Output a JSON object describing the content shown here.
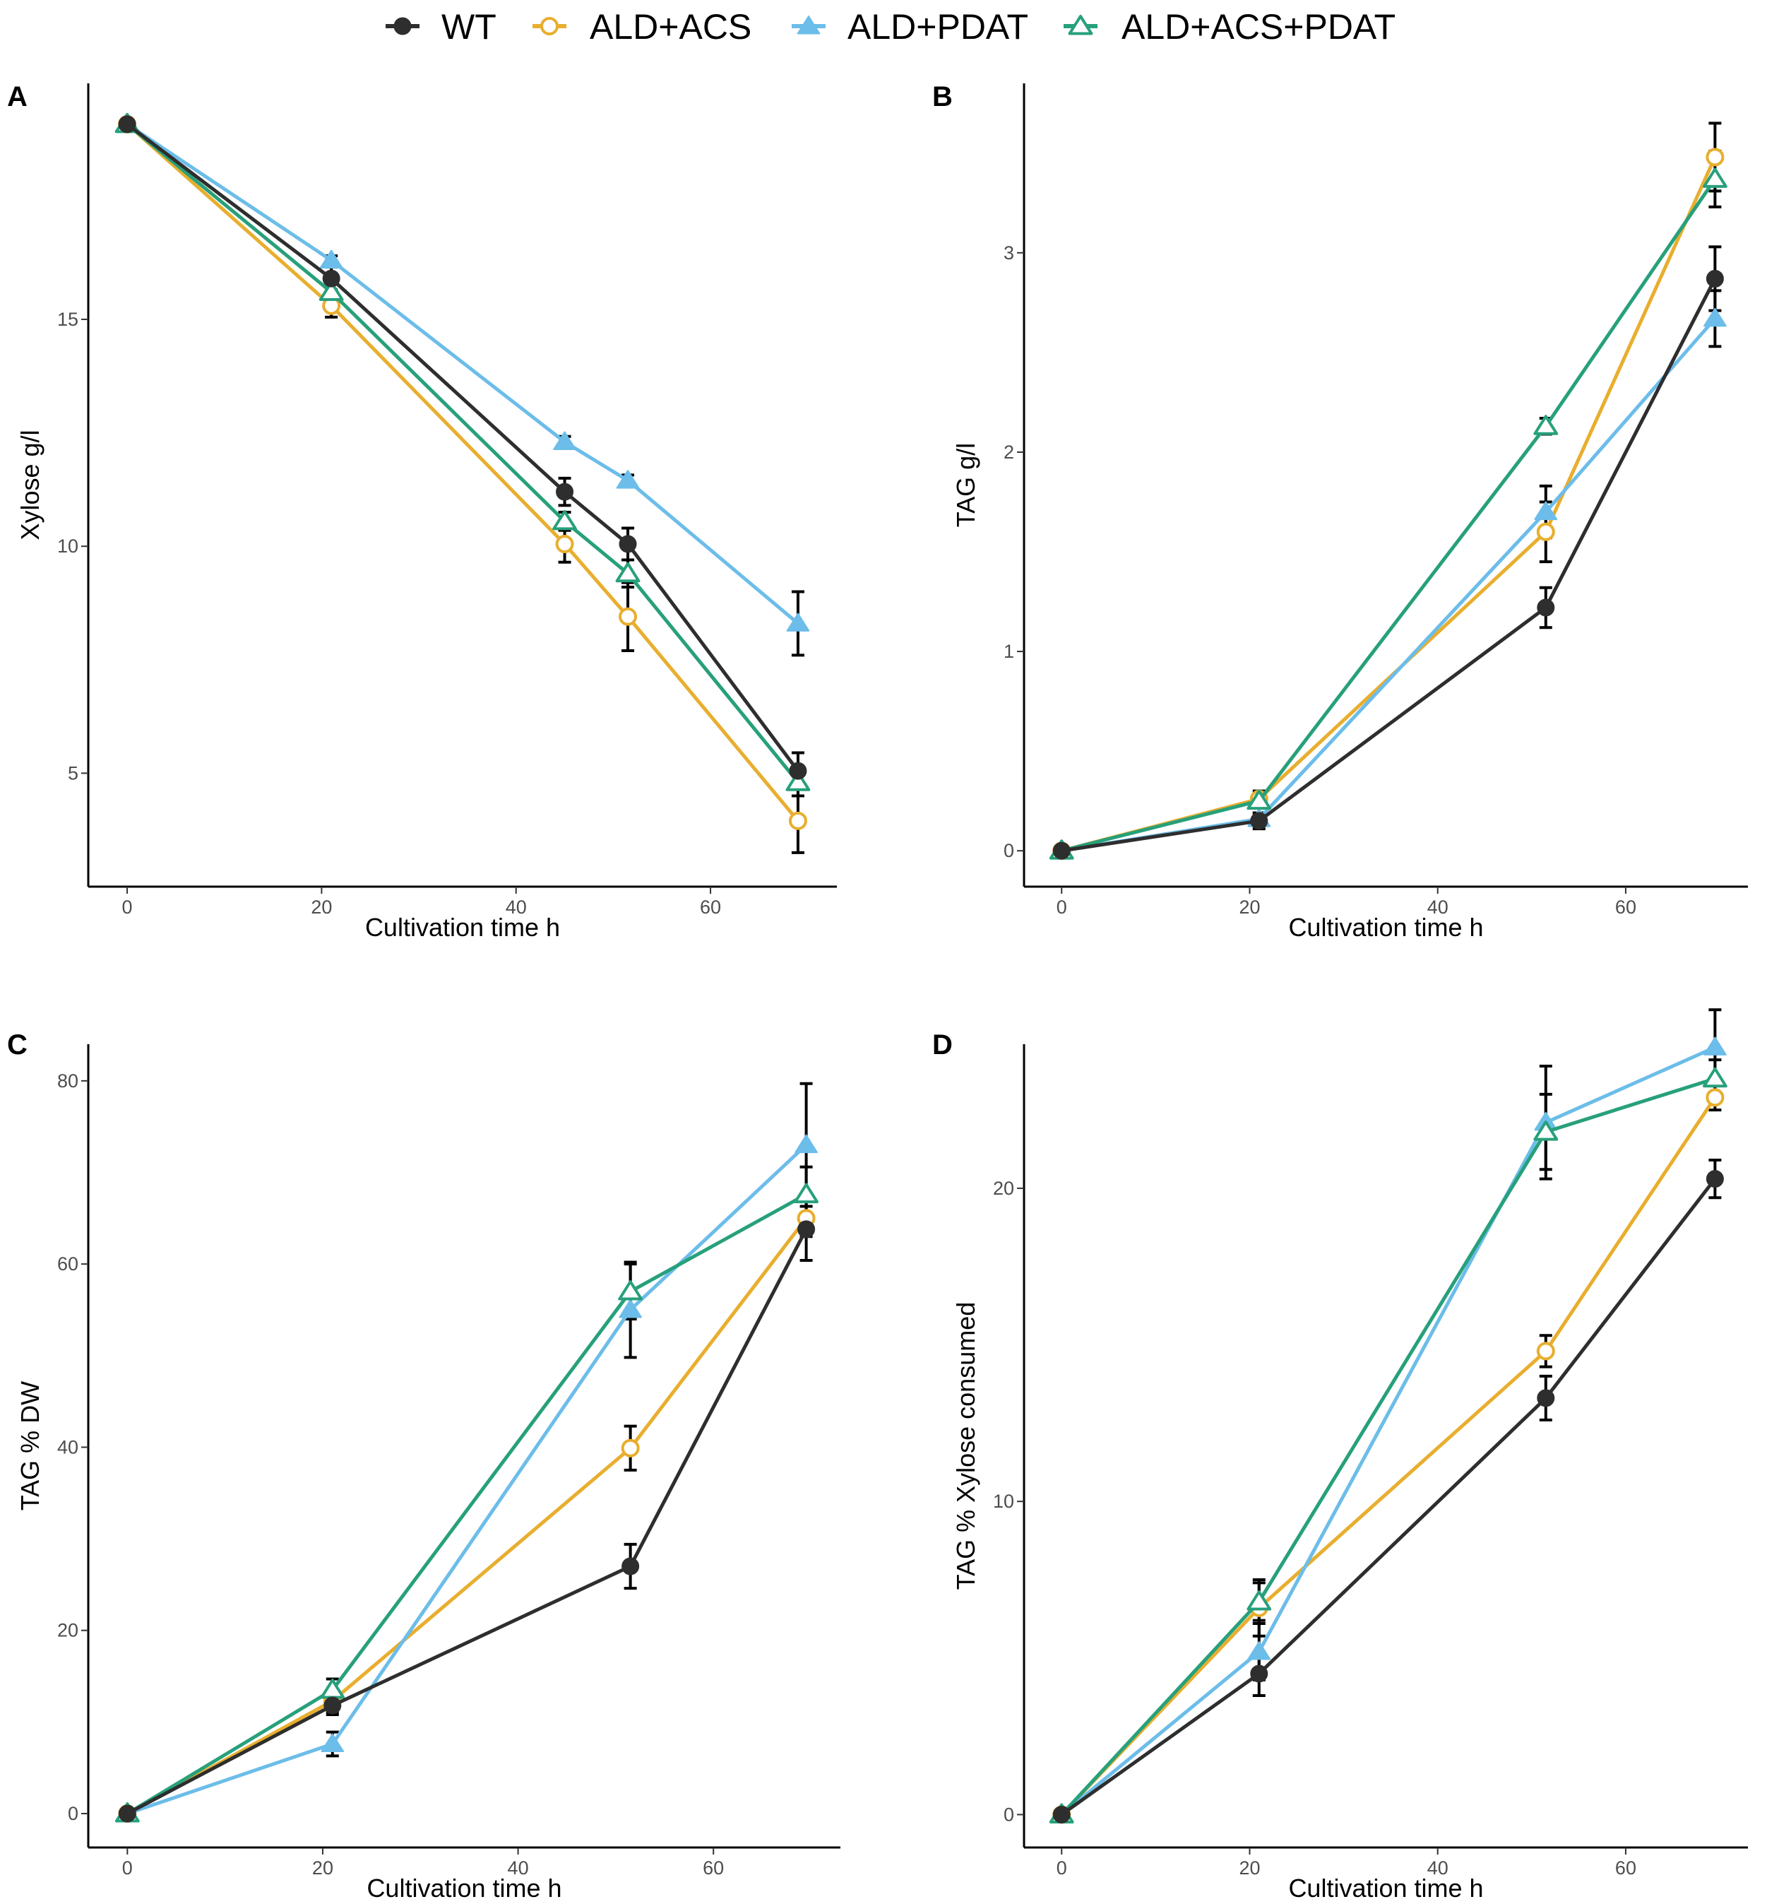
{
  "colors": {
    "WT": "#2e2e2e",
    "ALD+ACS": "#e8ae2e",
    "ALD+PDAT": "#6cbde9",
    "ALD+ACS+PDAT": "#27a07b"
  },
  "legend": [
    {
      "name": "WT",
      "marker": "filled-circle"
    },
    {
      "name": "ALD+ACS",
      "marker": "open-circle"
    },
    {
      "name": "ALD+PDAT",
      "marker": "filled-triangle"
    },
    {
      "name": "ALD+ACS+PDAT",
      "marker": "open-triangle"
    }
  ],
  "chart_data": [
    {
      "panel": "A",
      "type": "line",
      "xlabel": "Cultivation time h",
      "ylabel": "Xylose g/l",
      "xlim": [
        -4,
        73
      ],
      "ylim": [
        2.5,
        20.2
      ],
      "xticks": [
        0,
        20,
        40,
        60
      ],
      "yticks": [
        5,
        10,
        15
      ],
      "series": [
        {
          "name": "WT",
          "x": [
            0,
            21,
            45,
            51.5,
            69
          ],
          "y": [
            19.3,
            15.9,
            11.2,
            10.05,
            5.05
          ],
          "err": [
            0.1,
            0.25,
            0.3,
            0.35,
            0.4
          ]
        },
        {
          "name": "ALD+ACS",
          "x": [
            0,
            21,
            45,
            51.5,
            69
          ],
          "y": [
            19.3,
            15.3,
            10.05,
            8.45,
            3.95
          ],
          "err": [
            0.1,
            0.25,
            0.4,
            0.75,
            0.7
          ]
        },
        {
          "name": "ALD+PDAT",
          "x": [
            0,
            21,
            45,
            51.5,
            69
          ],
          "y": [
            19.3,
            16.3,
            12.3,
            11.45,
            8.3
          ],
          "err": [
            0.1,
            0.1,
            0.12,
            0.12,
            0.7
          ]
        },
        {
          "name": "ALD+ACS+PDAT",
          "x": [
            0,
            21,
            45,
            51.5,
            69
          ],
          "y": [
            19.3,
            15.6,
            10.55,
            9.4,
            4.8
          ],
          "err": [
            0.1,
            0.2,
            0.2,
            0.3,
            0.3
          ]
        }
      ]
    },
    {
      "panel": "B",
      "type": "line",
      "xlabel": "Cultivation time h",
      "ylabel": "TAG g/l",
      "xlim": [
        -4,
        73
      ],
      "ylim": [
        -0.18,
        3.85
      ],
      "xticks": [
        0,
        20,
        40,
        60
      ],
      "yticks": [
        0,
        1,
        2,
        3
      ],
      "series": [
        {
          "name": "WT",
          "x": [
            0,
            21,
            51.5,
            69.5
          ],
          "y": [
            0.0,
            0.15,
            1.22,
            2.87
          ],
          "err": [
            0.02,
            0.04,
            0.1,
            0.16
          ]
        },
        {
          "name": "ALD+ACS",
          "x": [
            0,
            21,
            51.5,
            69.5
          ],
          "y": [
            0.0,
            0.26,
            1.6,
            3.48
          ],
          "err": [
            0.02,
            0.04,
            0.15,
            0.17
          ]
        },
        {
          "name": "ALD+PDAT",
          "x": [
            0,
            21,
            51.5,
            69.5
          ],
          "y": [
            0.0,
            0.16,
            1.7,
            2.67
          ],
          "err": [
            0.02,
            0.03,
            0.13,
            0.14
          ]
        },
        {
          "name": "ALD+ACS+PDAT",
          "x": [
            0,
            21,
            51.5,
            69.5
          ],
          "y": [
            0.0,
            0.25,
            2.13,
            3.37
          ],
          "err": [
            0.02,
            0.03,
            0.04,
            0.14
          ]
        }
      ]
    },
    {
      "panel": "C",
      "type": "line",
      "xlabel": "Cultivation time h",
      "ylabel": "TAG % DW",
      "xlim": [
        -4,
        73
      ],
      "ylim": [
        -3.7,
        84
      ],
      "xticks": [
        0,
        20,
        40,
        60
      ],
      "yticks": [
        0,
        20,
        40,
        60,
        80
      ],
      "series": [
        {
          "name": "WT",
          "x": [
            0,
            21,
            51.5,
            69.5
          ],
          "y": [
            0.0,
            11.8,
            27.0,
            63.8
          ],
          "err": [
            0.3,
            1.0,
            2.4,
            3.4
          ]
        },
        {
          "name": "ALD+ACS",
          "x": [
            0,
            21,
            51.5,
            69.5
          ],
          "y": [
            0.0,
            12.3,
            39.9,
            65.0
          ],
          "err": [
            0.3,
            1.2,
            2.4,
            2.0
          ]
        },
        {
          "name": "ALD+PDAT",
          "x": [
            0,
            21,
            51.5,
            69.5
          ],
          "y": [
            0.0,
            7.6,
            55.0,
            73.0
          ],
          "err": [
            0.3,
            1.3,
            5.2,
            6.7
          ]
        },
        {
          "name": "ALD+ACS+PDAT",
          "x": [
            0,
            21,
            51.5,
            69.5
          ],
          "y": [
            0.0,
            13.5,
            57.0,
            67.6
          ],
          "err": [
            0.3,
            1.2,
            3.0,
            3.0
          ]
        }
      ]
    },
    {
      "panel": "D",
      "type": "line",
      "xlabel": "Cultivation time h",
      "ylabel": "TAG % Xylose consumed",
      "xlim": [
        -4,
        73
      ],
      "ylim": [
        -1.05,
        24.6
      ],
      "xticks": [
        0,
        20,
        40,
        60
      ],
      "yticks": [
        0,
        10,
        20
      ],
      "series": [
        {
          "name": "WT",
          "x": [
            0,
            21,
            51.5,
            69.5
          ],
          "y": [
            0.0,
            4.5,
            13.3,
            20.3
          ],
          "err": [
            0.1,
            0.7,
            0.7,
            0.6
          ]
        },
        {
          "name": "ALD+ACS",
          "x": [
            0,
            21,
            51.5,
            69.5
          ],
          "y": [
            0.0,
            6.6,
            14.8,
            22.9
          ],
          "err": [
            0.1,
            0.9,
            0.5,
            0.4
          ]
        },
        {
          "name": "ALD+PDAT",
          "x": [
            0,
            21,
            51.5,
            69.5
          ],
          "y": [
            0.0,
            5.2,
            22.1,
            24.5
          ],
          "err": [
            0.1,
            0.9,
            1.8,
            1.2
          ]
        },
        {
          "name": "ALD+ACS+PDAT",
          "x": [
            0,
            21,
            51.5,
            69.5
          ],
          "y": [
            0.0,
            6.8,
            21.8,
            23.5
          ],
          "err": [
            0.1,
            0.6,
            1.2,
            0.6
          ]
        }
      ]
    }
  ]
}
